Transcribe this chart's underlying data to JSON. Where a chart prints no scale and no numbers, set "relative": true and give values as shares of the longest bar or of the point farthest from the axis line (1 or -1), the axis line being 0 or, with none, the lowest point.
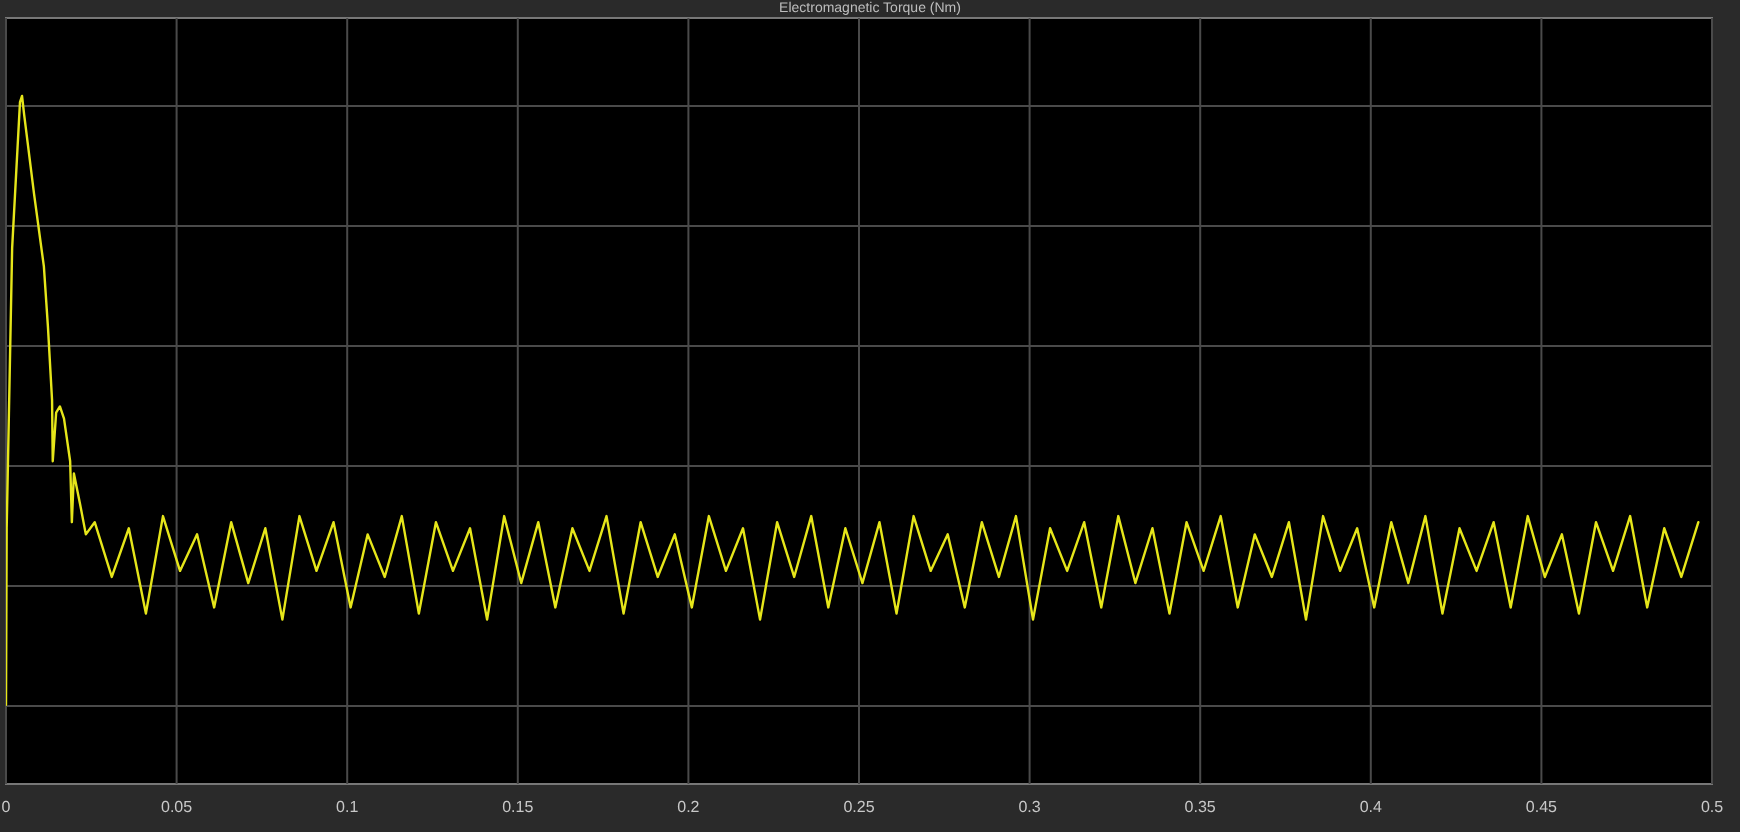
{
  "chart_data": {
    "type": "line",
    "title": "Electromagnetic Torque (Nm)",
    "relative": true,
    "grid": true,
    "marker": "none",
    "line_style": "solid",
    "xlim": [
      0,
      0.5
    ],
    "xticks": [
      0,
      0.05,
      0.1,
      0.15,
      0.2,
      0.25,
      0.3,
      0.35,
      0.4,
      0.45,
      0.5
    ],
    "series": [
      {
        "color": "#e6e61a",
        "x": [
          0,
          0.0002,
          0.0018,
          0.0041,
          0.0047,
          0.0053,
          0.0082,
          0.0111,
          0.0123,
          0.0135,
          0.0137,
          0.0147,
          0.0158,
          0.017,
          0.0188,
          0.0193,
          0.0199,
          0.0217,
          0.0234,
          0.026,
          0.031,
          0.036,
          0.041,
          0.046,
          0.051,
          0.056,
          0.061,
          0.066,
          0.071,
          0.076,
          0.081,
          0.086,
          0.091,
          0.096,
          0.101,
          0.106,
          0.111,
          0.116,
          0.121,
          0.126,
          0.131,
          0.136,
          0.141,
          0.146,
          0.151,
          0.156,
          0.161,
          0.166,
          0.171,
          0.176,
          0.181,
          0.186,
          0.191,
          0.196,
          0.201,
          0.206,
          0.211,
          0.216,
          0.221,
          0.226,
          0.231,
          0.236,
          0.241,
          0.246,
          0.251,
          0.256,
          0.261,
          0.266,
          0.271,
          0.276,
          0.281,
          0.286,
          0.291,
          0.296,
          0.301,
          0.306,
          0.311,
          0.316,
          0.321,
          0.326,
          0.331,
          0.336,
          0.341,
          0.346,
          0.351,
          0.356,
          0.361,
          0.366,
          0.371,
          0.376,
          0.381,
          0.386,
          0.391,
          0.396,
          0.401,
          0.406,
          0.411,
          0.416,
          0.421,
          0.426,
          0.431,
          0.436,
          0.441,
          0.446,
          0.451,
          0.456,
          0.461,
          0.466,
          0.471,
          0.476,
          0.481,
          0.486,
          0.491,
          0.496
        ],
        "values": [
          0,
          0.29,
          0.75,
          0.99,
          1,
          0.97,
          0.84,
          0.72,
          0.62,
          0.5,
          0.4,
          0.48,
          0.49,
          0.47,
          0.4,
          0.3,
          0.38,
          0.33,
          0.28,
          0.3,
          0.21,
          0.29,
          0.15,
          0.31,
          0.22,
          0.28,
          0.16,
          0.3,
          0.2,
          0.29,
          0.14,
          0.31,
          0.22,
          0.3,
          0.16,
          0.28,
          0.21,
          0.31,
          0.15,
          0.3,
          0.22,
          0.29,
          0.14,
          0.31,
          0.2,
          0.3,
          0.16,
          0.29,
          0.22,
          0.31,
          0.15,
          0.3,
          0.21,
          0.28,
          0.16,
          0.31,
          0.22,
          0.29,
          0.14,
          0.3,
          0.21,
          0.31,
          0.16,
          0.29,
          0.2,
          0.3,
          0.15,
          0.31,
          0.22,
          0.28,
          0.16,
          0.3,
          0.21,
          0.31,
          0.14,
          0.29,
          0.22,
          0.3,
          0.16,
          0.31,
          0.2,
          0.29,
          0.15,
          0.3,
          0.22,
          0.31,
          0.16,
          0.28,
          0.21,
          0.3,
          0.14,
          0.31,
          0.22,
          0.29,
          0.16,
          0.3,
          0.2,
          0.31,
          0.15,
          0.29,
          0.22,
          0.3,
          0.16,
          0.31,
          0.21,
          0.28,
          0.15,
          0.3,
          0.22,
          0.31,
          0.16,
          0.29,
          0.21,
          0.3
        ]
      }
    ]
  }
}
